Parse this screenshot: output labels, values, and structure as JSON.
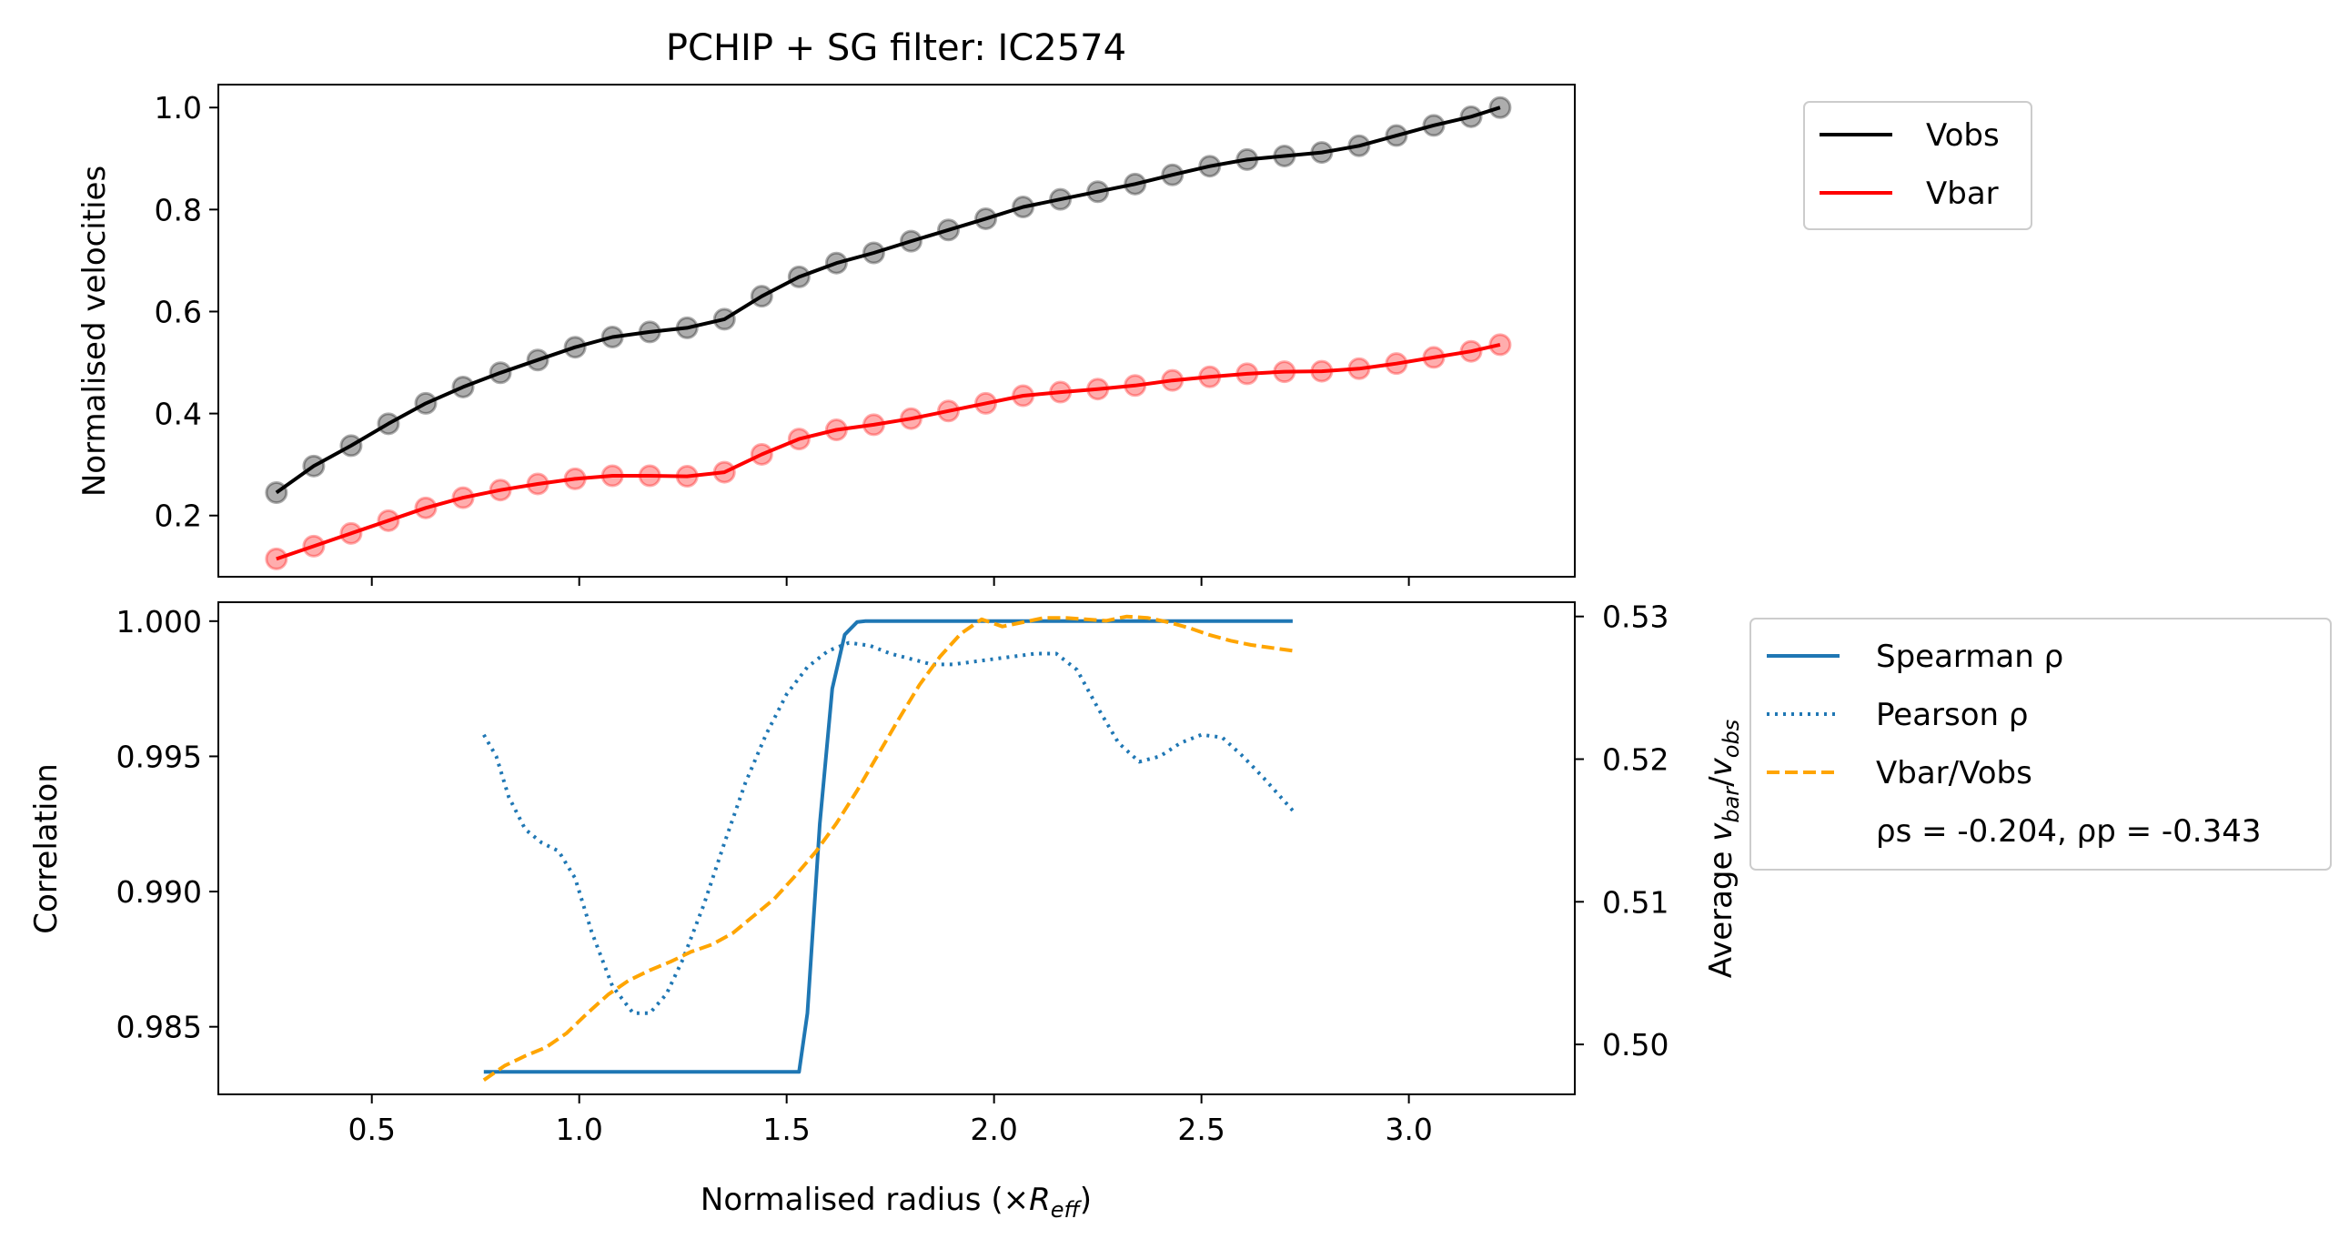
{
  "chart_data": [
    {
      "type": "line",
      "title": "PCHIP + SG filter: IC2574",
      "ylabel": "Normalised velocities",
      "xlim": [
        0.13,
        3.4
      ],
      "ylim": [
        0.08,
        1.045
      ],
      "xticks": [
        0.5,
        1.0,
        1.5,
        2.0,
        2.5,
        3.0
      ],
      "yticks": [
        0.2,
        0.4,
        0.6,
        0.8,
        1.0
      ],
      "ytick_labels": [
        "0.2",
        "0.4",
        "0.6",
        "0.8",
        "1.0"
      ],
      "legend_position": "outside-top-right",
      "x": [
        0.27,
        0.36,
        0.45,
        0.54,
        0.63,
        0.72,
        0.81,
        0.9,
        0.99,
        1.08,
        1.17,
        1.26,
        1.35,
        1.44,
        1.53,
        1.62,
        1.71,
        1.8,
        1.89,
        1.98,
        2.07,
        2.16,
        2.25,
        2.34,
        2.43,
        2.52,
        2.61,
        2.7,
        2.79,
        2.88,
        2.97,
        3.06,
        3.15,
        3.22
      ],
      "series": [
        {
          "name": "Vobs",
          "color": "#000000",
          "markers": true,
          "values": [
            0.245,
            0.297,
            0.337,
            0.38,
            0.42,
            0.452,
            0.48,
            0.505,
            0.53,
            0.55,
            0.56,
            0.568,
            0.585,
            0.63,
            0.668,
            0.695,
            0.715,
            0.738,
            0.76,
            0.782,
            0.805,
            0.82,
            0.835,
            0.85,
            0.868,
            0.885,
            0.898,
            0.905,
            0.912,
            0.925,
            0.945,
            0.965,
            0.982,
            1.0
          ]
        },
        {
          "name": "Vbar",
          "color": "#ff0000",
          "markers": true,
          "values": [
            0.115,
            0.14,
            0.165,
            0.19,
            0.215,
            0.235,
            0.25,
            0.262,
            0.272,
            0.278,
            0.278,
            0.277,
            0.285,
            0.32,
            0.35,
            0.368,
            0.378,
            0.39,
            0.405,
            0.42,
            0.435,
            0.442,
            0.448,
            0.455,
            0.465,
            0.472,
            0.478,
            0.482,
            0.483,
            0.488,
            0.498,
            0.51,
            0.522,
            0.535
          ]
        }
      ]
    },
    {
      "type": "line",
      "xlabel_main": "Normalised radius (×",
      "xlabel_sym": "R",
      "xlabel_sub": "eff",
      "xlabel_end": ")",
      "ylabel": "Correlation",
      "ylabel_right_main": "Average ",
      "ylabel_right_v1": "v",
      "ylabel_right_s1": "bar",
      "ylabel_right_slash": "/",
      "ylabel_right_v2": "v",
      "ylabel_right_s2": "obs",
      "xlim": [
        0.13,
        3.4
      ],
      "ylim": [
        0.9825,
        1.0007
      ],
      "ylim_right": [
        0.4965,
        0.531
      ],
      "xticks": [
        0.5,
        1.0,
        1.5,
        2.0,
        2.5,
        3.0
      ],
      "xtick_labels": [
        "0.5",
        "1.0",
        "1.5",
        "2.0",
        "2.5",
        "3.0"
      ],
      "yticks": [
        0.985,
        0.99,
        0.995,
        1.0
      ],
      "ytick_labels": [
        "0.985",
        "0.990",
        "0.995",
        "1.000"
      ],
      "yticks_right": [
        0.5,
        0.51,
        0.52,
        0.53
      ],
      "ytick_labels_right": [
        "0.50",
        "0.51",
        "0.52",
        "0.53"
      ],
      "legend_position": "outside-right",
      "legend_note": "ρs = -0.204, ρp = -0.343",
      "left_axis_color": "#1f77b4",
      "right_axis_color": "#ffa500",
      "series": [
        {
          "name": "Spearman ρ",
          "axis": "left",
          "color": "#1f77b4",
          "style": "solid",
          "x": [
            0.77,
            1.53,
            1.55,
            1.58,
            1.61,
            1.64,
            1.67,
            1.69,
            2.72
          ],
          "values": [
            0.98333,
            0.98333,
            0.9855,
            0.9925,
            0.9975,
            0.9995,
            0.99997,
            1.0,
            1.0
          ]
        },
        {
          "name": "Pearson ρ",
          "axis": "left",
          "color": "#1f77b4",
          "style": "dotted",
          "x": [
            0.77,
            0.8,
            0.83,
            0.87,
            0.91,
            0.95,
            0.99,
            1.03,
            1.08,
            1.13,
            1.17,
            1.21,
            1.25,
            1.3,
            1.35,
            1.4,
            1.45,
            1.5,
            1.55,
            1.6,
            1.65,
            1.7,
            1.75,
            1.8,
            1.85,
            1.9,
            1.95,
            2.0,
            2.05,
            2.1,
            2.15,
            2.2,
            2.25,
            2.3,
            2.35,
            2.4,
            2.45,
            2.5,
            2.55,
            2.6,
            2.65,
            2.72
          ],
          "values": [
            0.9958,
            0.995,
            0.9935,
            0.9923,
            0.9918,
            0.9915,
            0.9905,
            0.9885,
            0.9865,
            0.9855,
            0.9855,
            0.9862,
            0.9875,
            0.9895,
            0.9918,
            0.994,
            0.9958,
            0.9973,
            0.9983,
            0.9989,
            0.9992,
            0.9991,
            0.9988,
            0.9986,
            0.9984,
            0.9984,
            0.9985,
            0.9986,
            0.9987,
            0.9988,
            0.9988,
            0.9982,
            0.9968,
            0.9955,
            0.9948,
            0.995,
            0.9955,
            0.9958,
            0.9957,
            0.995,
            0.9942,
            0.993
          ]
        },
        {
          "name": "Vbar/Vobs",
          "axis": "right",
          "color": "#ffa500",
          "style": "dashed",
          "x": [
            0.77,
            0.82,
            0.87,
            0.92,
            0.97,
            1.02,
            1.07,
            1.12,
            1.17,
            1.22,
            1.27,
            1.32,
            1.37,
            1.42,
            1.47,
            1.52,
            1.57,
            1.62,
            1.67,
            1.72,
            1.77,
            1.82,
            1.87,
            1.92,
            1.97,
            2.02,
            2.07,
            2.12,
            2.17,
            2.22,
            2.27,
            2.32,
            2.37,
            2.42,
            2.47,
            2.52,
            2.57,
            2.62,
            2.67,
            2.72
          ],
          "values": [
            0.4975,
            0.4985,
            0.4992,
            0.4998,
            0.5008,
            0.5022,
            0.5035,
            0.5045,
            0.5052,
            0.5058,
            0.5065,
            0.507,
            0.5078,
            0.509,
            0.5102,
            0.5118,
            0.5135,
            0.5155,
            0.5178,
            0.5203,
            0.5228,
            0.5252,
            0.5272,
            0.5288,
            0.5298,
            0.5293,
            0.5296,
            0.5299,
            0.5299,
            0.5298,
            0.5297,
            0.53,
            0.5299,
            0.5296,
            0.5292,
            0.5287,
            0.5283,
            0.528,
            0.5278,
            0.5276
          ]
        }
      ]
    }
  ]
}
